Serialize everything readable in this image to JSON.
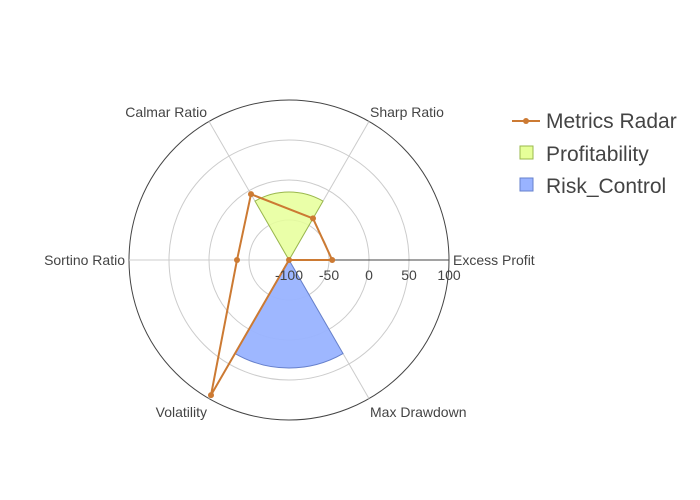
{
  "chart_data": {
    "type": "radar",
    "axes": [
      "Excess Profit",
      "Sharp Ratio",
      "Calmar Ratio",
      "Sortino Ratio",
      "Volatility",
      "Max Drawdown"
    ],
    "radial_range": [
      -100,
      100
    ],
    "radial_ticks": [
      "-100",
      "-50",
      "0",
      "50",
      "100"
    ],
    "series": [
      {
        "name": "Metrics Radar",
        "type": "line",
        "color": "#cc7a33",
        "values": [
          -46,
          -40,
          -5,
          -35,
          95,
          -100
        ]
      },
      {
        "name": "Profitability",
        "type": "area",
        "color": "#e6ff99",
        "values": [
          -15,
          -15,
          -15
        ]
      },
      {
        "name": "Risk_Control",
        "type": "area",
        "color": "#99b3ff",
        "values": [
          35,
          35,
          35
        ]
      }
    ],
    "legend_position": "top-right"
  }
}
